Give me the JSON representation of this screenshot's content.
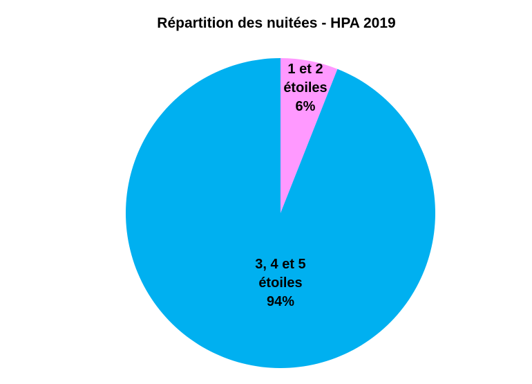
{
  "chart_data": {
    "type": "pie",
    "title": "Répartition des nuitées - HPA 2019",
    "start_angle_deg": 0,
    "direction": "clockwise",
    "slices": [
      {
        "label_lines": [
          "1 et 2",
          "étoiles",
          "6%"
        ],
        "value": 6,
        "color": "#FF99FF"
      },
      {
        "label_lines": [
          "3, 4 et 5",
          "étoiles",
          "94%"
        ],
        "value": 94,
        "color": "#00B0F0"
      }
    ]
  }
}
